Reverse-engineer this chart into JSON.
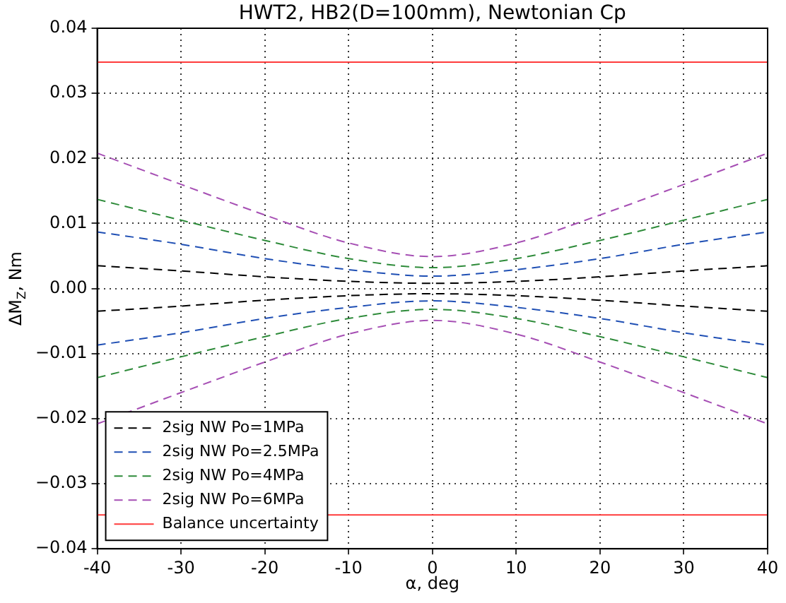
{
  "chart_data": {
    "type": "line",
    "title": "HWT2, HB2(D=100mm), Newtonian Cp",
    "xlabel": "α, deg",
    "ylabel": "ΔM$_{Z}$, Nm",
    "xlim": [
      -40,
      40
    ],
    "xticks": [
      -40,
      -30,
      -20,
      -10,
      0,
      10,
      20,
      30,
      40
    ],
    "ylim": [
      -0.04,
      0.04
    ],
    "yticks": [
      {
        "value": -0.04,
        "label": "−0.04"
      },
      {
        "value": -0.03,
        "label": "−0.03"
      },
      {
        "value": -0.02,
        "label": "−0.02"
      },
      {
        "value": -0.01,
        "label": "−0.01"
      },
      {
        "value": 0,
        "label": "0.00"
      },
      0.01,
      0.02,
      0.03,
      0.04
    ],
    "grid": true,
    "legend": "bottom left",
    "line_style": "dashed",
    "marker": "none",
    "series": [
      {
        "name": "2sig NW Po=1MPa",
        "color": "#000000",
        "x": [
          -40,
          -30,
          -20,
          -10,
          0,
          10,
          20,
          30,
          40
        ],
        "values": [
          0.0035,
          0.0027,
          0.0018,
          0.0011,
          0.0008,
          0.0011,
          0.0018,
          0.0027,
          0.0035
        ]
      },
      {
        "color": "#000000",
        "x": [
          -40,
          -30,
          -20,
          -10,
          0,
          10,
          20,
          30,
          40
        ],
        "values": [
          -0.0035,
          -0.0027,
          -0.0018,
          -0.0011,
          -0.0008,
          -0.0011,
          -0.0018,
          -0.0027,
          -0.0035
        ]
      },
      {
        "name": "2sig NW Po=2.5MPa",
        "color": "#1f4fb4",
        "x": [
          -40,
          -30,
          -20,
          -10,
          0,
          10,
          20,
          30,
          40
        ],
        "values": [
          0.0087,
          0.0068,
          0.0046,
          0.0029,
          0.0019,
          0.0029,
          0.0046,
          0.0068,
          0.0087
        ]
      },
      {
        "color": "#1f4fb4",
        "x": [
          -40,
          -30,
          -20,
          -10,
          0,
          10,
          20,
          30,
          40
        ],
        "values": [
          -0.0087,
          -0.0068,
          -0.0046,
          -0.0029,
          -0.0019,
          -0.0029,
          -0.0046,
          -0.0068,
          -0.0087
        ]
      },
      {
        "name": "2sig NW Po=4MPa",
        "color": "#2e8b3a",
        "x": [
          -40,
          -30,
          -20,
          -10,
          0,
          10,
          20,
          30,
          40
        ],
        "values": [
          0.0137,
          0.0105,
          0.0074,
          0.0046,
          0.0032,
          0.0046,
          0.0074,
          0.0105,
          0.0137
        ]
      },
      {
        "color": "#2e8b3a",
        "x": [
          -40,
          -30,
          -20,
          -10,
          0,
          10,
          20,
          30,
          40
        ],
        "values": [
          -0.0137,
          -0.0105,
          -0.0074,
          -0.0046,
          -0.0032,
          -0.0046,
          -0.0074,
          -0.0105,
          -0.0137
        ]
      },
      {
        "name": "2sig NW Po=6MPa",
        "color": "#a64fb4",
        "x": [
          -40,
          -30,
          -20,
          -10,
          0,
          10,
          20,
          30,
          40
        ],
        "values": [
          0.0208,
          0.016,
          0.0113,
          0.007,
          0.0049,
          0.007,
          0.0113,
          0.016,
          0.0208
        ]
      },
      {
        "color": "#a64fb4",
        "x": [
          -40,
          -30,
          -20,
          -10,
          0,
          10,
          20,
          30,
          40
        ],
        "values": [
          -0.0208,
          -0.016,
          -0.0113,
          -0.007,
          -0.0049,
          -0.007,
          -0.0113,
          -0.016,
          -0.0208
        ]
      },
      {
        "name": "Balance uncertainty",
        "color": "#ff3b3b",
        "line_style": "solid",
        "x": [
          -40,
          40
        ],
        "values": [
          0.0348,
          0.0348
        ]
      },
      {
        "color": "#ff3b3b",
        "line_style": "solid",
        "x": [
          -40,
          40
        ],
        "values": [
          -0.0348,
          -0.0348
        ]
      }
    ]
  }
}
